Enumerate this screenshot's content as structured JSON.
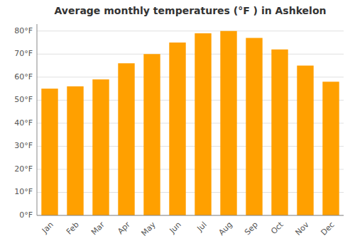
{
  "chart_data": {
    "type": "bar",
    "title": "Average monthly temperatures (°F ) in Ashkelon",
    "categories": [
      "Jan",
      "Feb",
      "Mar",
      "Apr",
      "May",
      "Jun",
      "Jul",
      "Aug",
      "Sep",
      "Oct",
      "Nov",
      "Dec"
    ],
    "values": [
      55,
      56,
      59,
      66,
      70,
      75,
      79,
      80,
      77,
      72,
      65,
      58
    ],
    "color": "#FFA000",
    "ylim": [
      0,
      83
    ],
    "yticks": [
      {
        "value": 0,
        "label": "0°F"
      },
      {
        "value": 10,
        "label": "10°F"
      },
      {
        "value": 20,
        "label": "20°F"
      },
      {
        "value": 30,
        "label": "30°F"
      },
      {
        "value": 40,
        "label": "40°F"
      },
      {
        "value": 50,
        "label": "50°F"
      },
      {
        "value": 60,
        "label": "60°F"
      },
      {
        "value": 70,
        "label": "70°F"
      },
      {
        "value": 80,
        "label": "80°F"
      }
    ],
    "grid": true
  }
}
